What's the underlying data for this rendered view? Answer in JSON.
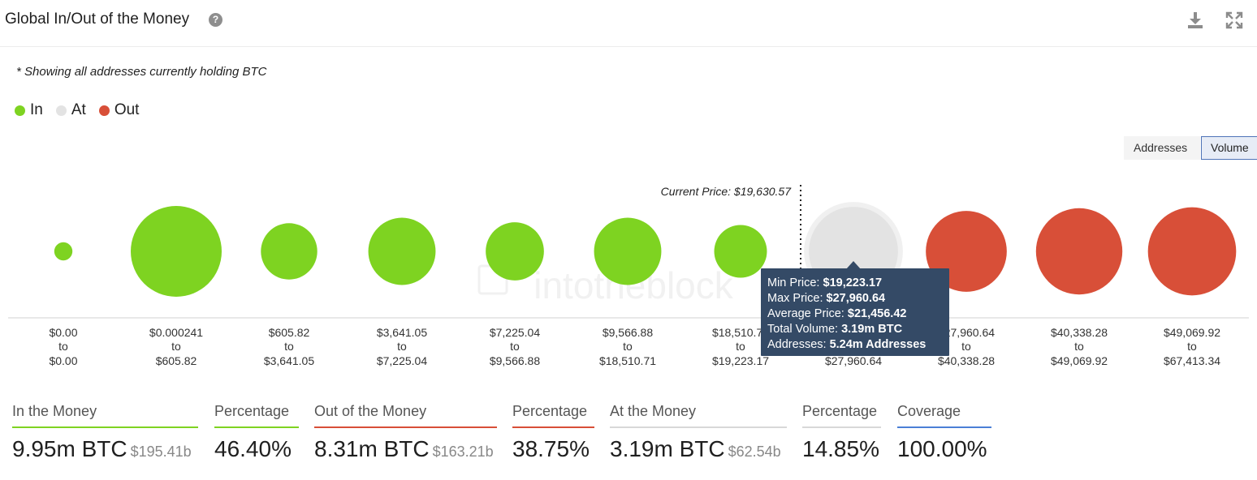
{
  "header": {
    "title": "Global In/Out of the Money"
  },
  "note": "* Showing all addresses currently holding BTC",
  "legend": [
    {
      "label": "In",
      "color": "#7ed321"
    },
    {
      "label": "At",
      "color": "#e3e3e3"
    },
    {
      "label": "Out",
      "color": "#d84f38"
    }
  ],
  "toggles": {
    "addresses": "Addresses",
    "volume": "Volume",
    "active": "Volume"
  },
  "watermark": "intotheblock",
  "chart_data": {
    "type": "bubble",
    "metric": "Volume",
    "current_price_label": "Current Price: $19,630.57",
    "current_price_position": "between bucket 7 and bucket 8",
    "buckets": [
      {
        "from": "$0.00",
        "to": "$0.00",
        "status": "In",
        "relative_size": 0.2
      },
      {
        "from": "$0.000241",
        "to": "$605.82",
        "status": "In",
        "relative_size": 1.0
      },
      {
        "from": "$605.82",
        "to": "$3,641.05",
        "status": "In",
        "relative_size": 0.62
      },
      {
        "from": "$3,641.05",
        "to": "$7,225.04",
        "status": "In",
        "relative_size": 0.74
      },
      {
        "from": "$7,225.04",
        "to": "$9,566.88",
        "status": "In",
        "relative_size": 0.64
      },
      {
        "from": "$9,566.88",
        "to": "$18,510.71",
        "status": "In",
        "relative_size": 0.74
      },
      {
        "from": "$18,510.71",
        "to": "$19,223.17",
        "status": "In",
        "relative_size": 0.58
      },
      {
        "from": "$19,223.17",
        "to": "$27,960.64",
        "status": "At",
        "relative_size": 0.98
      },
      {
        "from": "$27,960.64",
        "to": "$40,338.28",
        "status": "Out",
        "relative_size": 0.89
      },
      {
        "from": "$40,338.28",
        "to": "$49,069.92",
        "status": "Out",
        "relative_size": 0.95
      },
      {
        "from": "$49,069.92",
        "to": "$67,413.34",
        "status": "Out",
        "relative_size": 0.97
      }
    ],
    "connector": "to"
  },
  "tooltip": {
    "rows": [
      {
        "label": "Min Price:",
        "value": "$19,223.17"
      },
      {
        "label": "Max Price:",
        "value": "$27,960.64"
      },
      {
        "label": "Average Price:",
        "value": "$21,456.42"
      },
      {
        "label": "Total Volume:",
        "value": "3.19m BTC"
      },
      {
        "label": "Addresses:",
        "value": "5.24m Addresses"
      }
    ]
  },
  "stats": [
    {
      "label": "In the Money",
      "value": "9.95m BTC",
      "sub": "$195.41b",
      "color": "#7ed321"
    },
    {
      "label": "Percentage",
      "value": "46.40%",
      "sub": "",
      "color": "#7ed321"
    },
    {
      "label": "Out of the Money",
      "value": "8.31m BTC",
      "sub": "$163.21b",
      "color": "#d84f38"
    },
    {
      "label": "Percentage",
      "value": "38.75%",
      "sub": "",
      "color": "#d84f38"
    },
    {
      "label": "At the Money",
      "value": "3.19m BTC",
      "sub": "$62.54b",
      "color": "#d8d8d8"
    },
    {
      "label": "Percentage",
      "value": "14.85%",
      "sub": "",
      "color": "#d8d8d8"
    },
    {
      "label": "Coverage",
      "value": "100.00%",
      "sub": "",
      "color": "#4a7fd6"
    }
  ]
}
